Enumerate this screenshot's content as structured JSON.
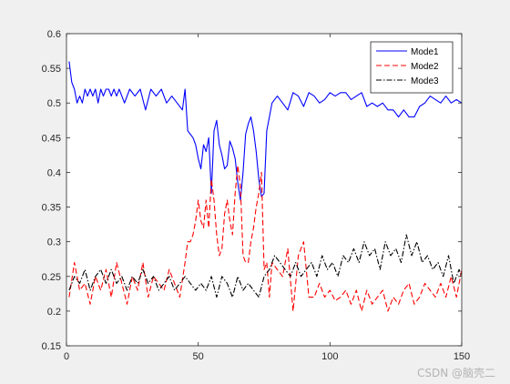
{
  "chart_data": {
    "type": "line",
    "title": "",
    "xlabel": "",
    "ylabel": "",
    "xlim": [
      0,
      150
    ],
    "ylim": [
      0.15,
      0.6
    ],
    "xticks": [
      0,
      50,
      100,
      150
    ],
    "yticks": [
      0.15,
      0.2,
      0.25,
      0.3,
      0.35,
      0.4,
      0.45,
      0.5,
      0.55,
      0.6
    ],
    "xtick_labels": [
      "0",
      "50",
      "100",
      "150"
    ],
    "ytick_labels": [
      "0.15",
      "0.2",
      "0.25",
      "0.3",
      "0.35",
      "0.4",
      "0.45",
      "0.5",
      "0.55",
      "0.6"
    ],
    "grid": false,
    "legend_position": "top-right",
    "series": [
      {
        "name": "Mode1",
        "color": "#0000ff",
        "dash": "solid",
        "x": [
          1,
          2,
          3,
          4,
          5,
          6,
          7,
          8,
          9,
          10,
          11,
          12,
          13,
          14,
          15,
          16,
          17,
          18,
          19,
          20,
          22,
          24,
          26,
          28,
          30,
          32,
          34,
          36,
          38,
          40,
          42,
          44,
          45,
          46,
          47,
          48,
          49,
          50,
          51,
          52,
          53,
          54,
          55,
          56,
          57,
          58,
          59,
          60,
          61,
          62,
          63,
          64,
          65,
          66,
          67,
          68,
          69,
          70,
          71,
          72,
          73,
          74,
          75,
          76,
          77,
          78,
          80,
          82,
          84,
          86,
          88,
          90,
          92,
          94,
          96,
          98,
          100,
          102,
          104,
          106,
          108,
          110,
          112,
          114,
          116,
          118,
          120,
          122,
          124,
          126,
          128,
          130,
          132,
          134,
          136,
          138,
          140,
          142,
          144,
          146,
          148,
          150
        ],
        "values": [
          0.56,
          0.53,
          0.52,
          0.5,
          0.51,
          0.5,
          0.52,
          0.51,
          0.52,
          0.51,
          0.52,
          0.5,
          0.52,
          0.51,
          0.52,
          0.52,
          0.51,
          0.52,
          0.51,
          0.52,
          0.5,
          0.52,
          0.51,
          0.52,
          0.49,
          0.52,
          0.51,
          0.52,
          0.5,
          0.51,
          0.5,
          0.49,
          0.52,
          0.46,
          0.455,
          0.45,
          0.44,
          0.42,
          0.405,
          0.44,
          0.43,
          0.45,
          0.37,
          0.46,
          0.475,
          0.44,
          0.425,
          0.405,
          0.41,
          0.445,
          0.435,
          0.42,
          0.385,
          0.36,
          0.4,
          0.455,
          0.47,
          0.48,
          0.46,
          0.43,
          0.39,
          0.365,
          0.37,
          0.46,
          0.48,
          0.5,
          0.51,
          0.5,
          0.49,
          0.515,
          0.51,
          0.495,
          0.515,
          0.51,
          0.5,
          0.505,
          0.515,
          0.51,
          0.515,
          0.515,
          0.505,
          0.51,
          0.515,
          0.495,
          0.5,
          0.495,
          0.5,
          0.49,
          0.49,
          0.48,
          0.49,
          0.48,
          0.48,
          0.495,
          0.5,
          0.51,
          0.505,
          0.5,
          0.51,
          0.5,
          0.505,
          0.5
        ]
      },
      {
        "name": "Mode2",
        "color": "#ff0000",
        "dash": "dashed",
        "x": [
          1,
          3,
          5,
          7,
          9,
          11,
          13,
          15,
          17,
          19,
          21,
          23,
          25,
          27,
          29,
          31,
          33,
          35,
          37,
          39,
          41,
          43,
          45,
          46,
          47,
          48,
          49,
          50,
          51,
          52,
          53,
          54,
          55,
          56,
          57,
          58,
          59,
          60,
          61,
          62,
          63,
          64,
          65,
          66,
          67,
          68,
          69,
          70,
          71,
          72,
          73,
          74,
          75,
          76,
          77,
          78,
          80,
          82,
          84,
          86,
          88,
          90,
          92,
          94,
          96,
          98,
          100,
          102,
          104,
          106,
          108,
          110,
          112,
          114,
          116,
          118,
          120,
          122,
          124,
          126,
          128,
          130,
          132,
          134,
          136,
          138,
          140,
          142,
          144,
          146,
          148,
          150
        ],
        "values": [
          0.22,
          0.27,
          0.23,
          0.24,
          0.21,
          0.25,
          0.23,
          0.26,
          0.22,
          0.27,
          0.24,
          0.21,
          0.25,
          0.23,
          0.27,
          0.22,
          0.25,
          0.24,
          0.23,
          0.26,
          0.24,
          0.22,
          0.27,
          0.3,
          0.3,
          0.31,
          0.33,
          0.36,
          0.33,
          0.32,
          0.36,
          0.32,
          0.39,
          0.36,
          0.31,
          0.28,
          0.29,
          0.34,
          0.36,
          0.33,
          0.31,
          0.37,
          0.41,
          0.38,
          0.28,
          0.27,
          0.27,
          0.3,
          0.32,
          0.35,
          0.37,
          0.4,
          0.26,
          0.27,
          0.22,
          0.27,
          0.26,
          0.25,
          0.29,
          0.2,
          0.28,
          0.3,
          0.22,
          0.22,
          0.24,
          0.22,
          0.23,
          0.215,
          0.22,
          0.23,
          0.21,
          0.23,
          0.2,
          0.23,
          0.21,
          0.22,
          0.23,
          0.2,
          0.22,
          0.21,
          0.23,
          0.24,
          0.21,
          0.22,
          0.24,
          0.23,
          0.22,
          0.24,
          0.22,
          0.25,
          0.22,
          0.26
        ]
      },
      {
        "name": "Mode3",
        "color": "#000000",
        "dash": "dashdot",
        "x": [
          1,
          3,
          5,
          7,
          9,
          11,
          13,
          15,
          17,
          19,
          21,
          23,
          25,
          27,
          29,
          31,
          33,
          35,
          37,
          39,
          41,
          43,
          45,
          47,
          49,
          51,
          53,
          55,
          57,
          59,
          61,
          63,
          65,
          67,
          69,
          71,
          73,
          75,
          77,
          79,
          81,
          83,
          85,
          87,
          89,
          91,
          93,
          95,
          97,
          99,
          101,
          103,
          105,
          107,
          109,
          111,
          113,
          115,
          117,
          119,
          121,
          123,
          125,
          127,
          129,
          131,
          133,
          135,
          137,
          139,
          141,
          143,
          145,
          147,
          149,
          150
        ],
        "values": [
          0.23,
          0.25,
          0.24,
          0.26,
          0.23,
          0.25,
          0.26,
          0.24,
          0.26,
          0.24,
          0.25,
          0.23,
          0.25,
          0.24,
          0.26,
          0.24,
          0.25,
          0.23,
          0.24,
          0.25,
          0.23,
          0.24,
          0.25,
          0.24,
          0.23,
          0.24,
          0.23,
          0.25,
          0.22,
          0.25,
          0.24,
          0.22,
          0.25,
          0.23,
          0.24,
          0.23,
          0.22,
          0.25,
          0.26,
          0.28,
          0.27,
          0.26,
          0.25,
          0.27,
          0.25,
          0.26,
          0.27,
          0.25,
          0.28,
          0.26,
          0.27,
          0.25,
          0.28,
          0.27,
          0.29,
          0.27,
          0.3,
          0.28,
          0.29,
          0.26,
          0.3,
          0.28,
          0.29,
          0.27,
          0.31,
          0.28,
          0.3,
          0.27,
          0.28,
          0.26,
          0.27,
          0.25,
          0.28,
          0.24,
          0.26,
          0.25
        ]
      }
    ]
  },
  "watermark": "CSDN @脑壳二"
}
